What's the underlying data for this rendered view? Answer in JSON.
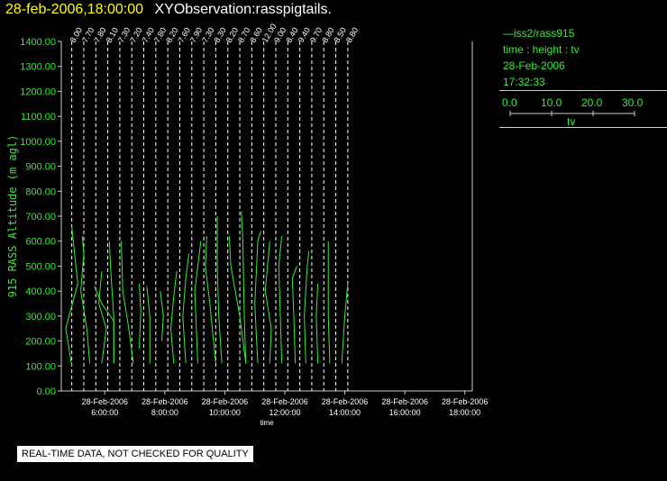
{
  "header": {
    "date": "28-feb-2006,18:00:00",
    "title": "XYObservation:rasspigtails."
  },
  "legend": {
    "series": "—iss2/rass915",
    "line2": "time : height : tv",
    "line3": "28-Feb-2006",
    "line4": "17:32:33",
    "scale_ticks": [
      "0.0",
      "10.0",
      "20.0",
      "30.0"
    ],
    "scale_label": "tv"
  },
  "qc_note": "REAL-TIME DATA, NOT CHECKED FOR QUALITY",
  "colors": {
    "background": "#000000",
    "data": "#33ee33",
    "axis": "#cccccc",
    "header_date": "#ffff00"
  },
  "chart_data": {
    "type": "line",
    "ylabel": "915 RASS Altitude (m agl)",
    "xlabel": "time",
    "ylim": [
      0,
      1400
    ],
    "y_ticks": [
      "0.00",
      "100.00",
      "200.00",
      "300.00",
      "400.00",
      "500.00",
      "600.00",
      "700.00",
      "800.00",
      "900.00",
      "1000.00",
      "1100.00",
      "1200.00",
      "1300.00",
      "1400.00"
    ],
    "x_ticks": [
      {
        "date": "28-Feb-2006",
        "time": "6:00:00"
      },
      {
        "date": "28-Feb-2006",
        "time": "8:00:00"
      },
      {
        "date": "28-Feb-2006",
        "time": "10:00:00"
      },
      {
        "date": "28-Feb-2006",
        "time": "12:00:00"
      },
      {
        "date": "28-Feb-2006",
        "time": "14:00:00"
      },
      {
        "date": "28-Feb-2006",
        "time": "16:00:00"
      },
      {
        "date": "28-Feb-2006",
        "time": "18:00:00"
      }
    ],
    "x_range_hours": [
      4.55,
      18.25
    ],
    "grid": "dashed vertical at each profile time",
    "profiles": [
      {
        "t": 4.9,
        "label": "8.00"
      },
      {
        "t": 5.3,
        "label": "7.70"
      },
      {
        "t": 5.7,
        "label": "7.80"
      },
      {
        "t": 6.1,
        "label": "8.10"
      },
      {
        "t": 6.5,
        "label": "7.30"
      },
      {
        "t": 6.9,
        "label": "7.20"
      },
      {
        "t": 7.3,
        "label": "7.40"
      },
      {
        "t": 7.7,
        "label": "7.80"
      },
      {
        "t": 8.1,
        "label": "8.20"
      },
      {
        "t": 8.5,
        "label": "7.60"
      },
      {
        "t": 8.9,
        "label": "7.90"
      },
      {
        "t": 9.3,
        "label": "7.30"
      },
      {
        "t": 9.7,
        "label": "8.30"
      },
      {
        "t": 10.1,
        "label": "8.20"
      },
      {
        "t": 10.5,
        "label": "8.70"
      },
      {
        "t": 10.9,
        "label": "8.60"
      },
      {
        "t": 11.3,
        "label": "12.00"
      },
      {
        "t": 11.7,
        "label": "9.00"
      },
      {
        "t": 12.1,
        "label": "8.40"
      },
      {
        "t": 12.5,
        "label": "9.40"
      },
      {
        "t": 12.9,
        "label": "9.70"
      },
      {
        "t": 13.3,
        "label": "8.80"
      },
      {
        "t": 13.7,
        "label": "8.50"
      },
      {
        "t": 14.1,
        "label": "8.80"
      }
    ],
    "series": [
      {
        "t": 4.9,
        "points": [
          [
            0,
            100
          ],
          [
            -0.2,
            250
          ],
          [
            0.2,
            430
          ],
          [
            0.05,
            600
          ],
          [
            0,
            660
          ]
        ]
      },
      {
        "t": 5.3,
        "points": [
          [
            0.2,
            110
          ],
          [
            0.1,
            250
          ],
          [
            -0.1,
            400
          ],
          [
            0,
            550
          ],
          [
            -0.05,
            620
          ]
        ]
      },
      {
        "t": 5.7,
        "points": [
          [
            0.2,
            110
          ],
          [
            0.35,
            250
          ],
          [
            0.1,
            350
          ],
          [
            0.2,
            480
          ]
        ]
      },
      {
        "t": 6.1,
        "points": [
          [
            0.2,
            110
          ],
          [
            0.2,
            280
          ],
          [
            -0.2,
            350
          ],
          [
            -0.45,
            420
          ]
        ]
      },
      {
        "t": 6.5,
        "points": [
          [
            -0.2,
            110
          ],
          [
            -0.2,
            300
          ],
          [
            -0.3,
            480
          ],
          [
            -0.35,
            600
          ]
        ]
      },
      {
        "t": 6.9,
        "points": [
          [
            0.05,
            110
          ],
          [
            -0.1,
            250
          ],
          [
            -0.3,
            400
          ],
          [
            -0.35,
            600
          ]
        ]
      },
      {
        "t": 7.3,
        "points": [
          [
            -0.15,
            170
          ],
          [
            -0.1,
            320
          ],
          [
            -0.15,
            430
          ]
        ]
      },
      {
        "t": 7.7,
        "points": [
          [
            -0.2,
            110
          ],
          [
            -0.2,
            300
          ],
          [
            -0.3,
            420
          ]
        ]
      },
      {
        "t": 8.1,
        "points": [
          [
            -0.2,
            200
          ],
          [
            -0.15,
            300
          ],
          [
            -0.25,
            400
          ]
        ]
      },
      {
        "t": 8.5,
        "points": [
          [
            -0.2,
            110
          ],
          [
            -0.3,
            250
          ],
          [
            -0.2,
            380
          ],
          [
            -0.1,
            480
          ]
        ]
      },
      {
        "t": 8.9,
        "points": [
          [
            -0.2,
            110
          ],
          [
            -0.3,
            300
          ],
          [
            -0.2,
            450
          ],
          [
            -0.1,
            550
          ]
        ]
      },
      {
        "t": 9.3,
        "points": [
          [
            -0.2,
            110
          ],
          [
            -0.3,
            400
          ],
          [
            -0.1,
            600
          ]
        ]
      },
      {
        "t": 9.7,
        "points": [
          [
            0,
            110
          ],
          [
            -0.2,
            350
          ],
          [
            -0.35,
            500
          ],
          [
            -0.3,
            620
          ]
        ]
      },
      {
        "t": 10.1,
        "points": [
          [
            -0.2,
            110
          ],
          [
            -0.3,
            300
          ],
          [
            -0.35,
            500
          ],
          [
            -0.35,
            700
          ]
        ]
      },
      {
        "t": 10.5,
        "points": [
          [
            0.2,
            110
          ],
          [
            0,
            300
          ],
          [
            -0.3,
            500
          ],
          [
            -0.35,
            620
          ]
        ]
      },
      {
        "t": 10.9,
        "points": [
          [
            -0.2,
            110
          ],
          [
            -0.25,
            300
          ],
          [
            -0.3,
            600
          ],
          [
            -0.35,
            720
          ]
        ]
      },
      {
        "t": 11.3,
        "points": [
          [
            -0.2,
            110
          ],
          [
            -0.3,
            350
          ],
          [
            -0.2,
            600
          ],
          [
            -0.1,
            640
          ]
        ]
      },
      {
        "t": 11.7,
        "points": [
          [
            -0.2,
            110
          ],
          [
            -0.15,
            250
          ],
          [
            -0.35,
            400
          ],
          [
            -0.2,
            600
          ]
        ]
      },
      {
        "t": 12.1,
        "points": [
          [
            -0.2,
            110
          ],
          [
            -0.25,
            300
          ],
          [
            -0.3,
            500
          ],
          [
            -0.2,
            620
          ]
        ]
      },
      {
        "t": 12.5,
        "points": [
          [
            -0.15,
            110
          ],
          [
            -0.2,
            300
          ],
          [
            -0.25,
            450
          ],
          [
            -0.1,
            500
          ]
        ]
      },
      {
        "t": 12.9,
        "points": [
          [
            -0.2,
            110
          ],
          [
            -0.25,
            300
          ],
          [
            -0.15,
            500
          ],
          [
            -0.1,
            560
          ]
        ]
      },
      {
        "t": 13.3,
        "points": [
          [
            -0.2,
            110
          ],
          [
            -0.25,
            300
          ],
          [
            -0.2,
            430
          ]
        ]
      },
      {
        "t": 13.7,
        "points": [
          [
            -0.2,
            110
          ],
          [
            -0.25,
            300
          ],
          [
            -0.25,
            450
          ],
          [
            -0.25,
            600
          ]
        ]
      },
      {
        "t": 14.1,
        "points": [
          [
            -0.2,
            110
          ],
          [
            -0.1,
            300
          ],
          [
            0,
            430
          ]
        ]
      }
    ]
  }
}
